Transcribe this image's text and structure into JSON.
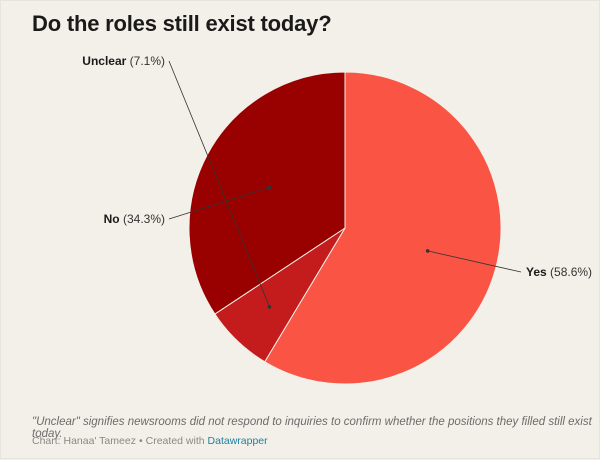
{
  "title": "Do the roles still exist today?",
  "chart_data": {
    "type": "pie",
    "title": "Do the roles still exist today?",
    "slices": [
      {
        "label": "Yes",
        "value": 58.6,
        "value_text": "(58.6%)",
        "color": "#fa5444"
      },
      {
        "label": "Unclear",
        "value": 7.1,
        "value_text": "(7.1%)",
        "color": "#c41c1c"
      },
      {
        "label": "No",
        "value": 34.3,
        "value_text": "(34.3%)",
        "color": "#990000"
      }
    ]
  },
  "note": "\"Unclear\" signifies newsrooms did not respond to inquiries to confirm whether the positions they filled still exist today.",
  "credit": {
    "prefix": "Chart: Hanaa' Tameez",
    "separator": "•",
    "created_with": "Created with",
    "tool_link": "Datawrapper"
  },
  "colors": {
    "background": "#f3f0e9",
    "label_line": "#333333"
  }
}
